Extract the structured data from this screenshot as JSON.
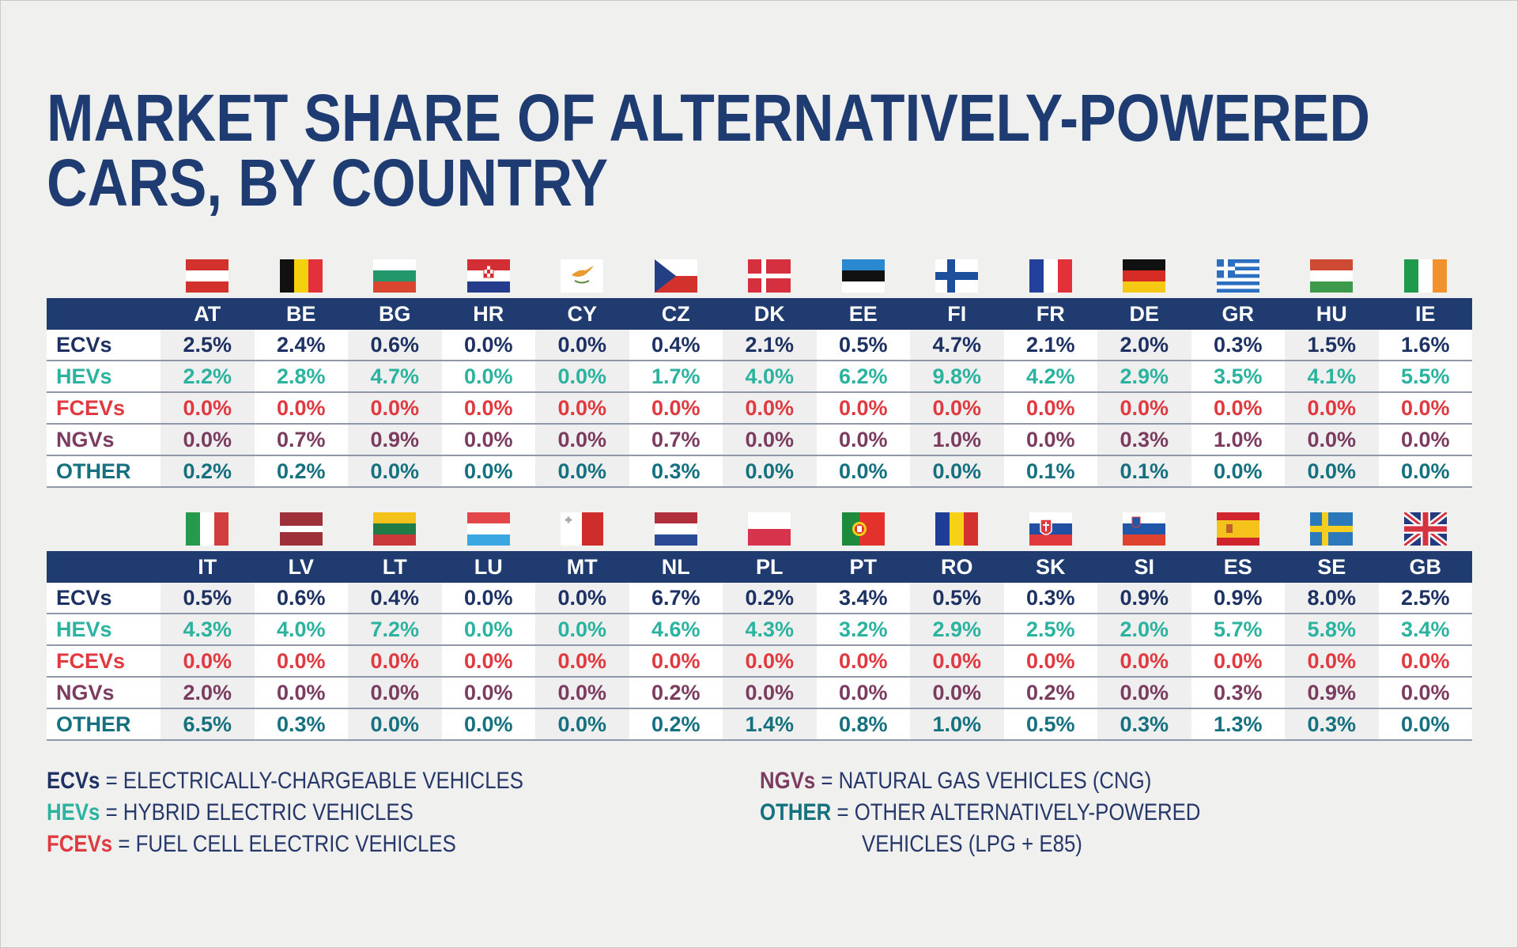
{
  "title": {
    "line1": "MARKET SHARE OF ALTERNATIVELY-POWERED",
    "line2": "CARS, BY COUNTRY"
  },
  "colors": {
    "title": "#1e3c72",
    "header_bar": "#1f3b6f",
    "ECVs": "#1d3163",
    "HEVs": "#2bb39f",
    "FCEVs": "#e03a40",
    "NGVs": "#7b3c60",
    "OTHER": "#15707f"
  },
  "row_labels": [
    "ECVs",
    "HEVs",
    "FCEVs",
    "NGVs",
    "OTHER"
  ],
  "chart_data": {
    "type": "table",
    "title": "MARKET SHARE OF ALTERNATIVELY-POWERED CARS, BY COUNTRY",
    "unit": "%",
    "rows": [
      "ECVs",
      "HEVs",
      "FCEVs",
      "NGVs",
      "OTHER"
    ],
    "tables": [
      {
        "countries": [
          "AT",
          "BE",
          "BG",
          "HR",
          "CY",
          "CZ",
          "DK",
          "EE",
          "FI",
          "FR",
          "DE",
          "GR",
          "HU",
          "IE"
        ],
        "values": {
          "ECVs": [
            "2.5%",
            "2.4%",
            "0.6%",
            "0.0%",
            "0.0%",
            "0.4%",
            "2.1%",
            "0.5%",
            "4.7%",
            "2.1%",
            "2.0%",
            "0.3%",
            "1.5%",
            "1.6%"
          ],
          "HEVs": [
            "2.2%",
            "2.8%",
            "4.7%",
            "0.0%",
            "0.0%",
            "1.7%",
            "4.0%",
            "6.2%",
            "9.8%",
            "4.2%",
            "2.9%",
            "3.5%",
            "4.1%",
            "5.5%"
          ],
          "FCEVs": [
            "0.0%",
            "0.0%",
            "0.0%",
            "0.0%",
            "0.0%",
            "0.0%",
            "0.0%",
            "0.0%",
            "0.0%",
            "0.0%",
            "0.0%",
            "0.0%",
            "0.0%",
            "0.0%"
          ],
          "NGVs": [
            "0.0%",
            "0.7%",
            "0.9%",
            "0.0%",
            "0.0%",
            "0.7%",
            "0.0%",
            "0.0%",
            "1.0%",
            "0.0%",
            "0.3%",
            "1.0%",
            "0.0%",
            "0.0%"
          ],
          "OTHER": [
            "0.2%",
            "0.2%",
            "0.0%",
            "0.0%",
            "0.0%",
            "0.3%",
            "0.0%",
            "0.0%",
            "0.0%",
            "0.1%",
            "0.1%",
            "0.0%",
            "0.0%",
            "0.0%"
          ]
        }
      },
      {
        "countries": [
          "IT",
          "LV",
          "LT",
          "LU",
          "MT",
          "NL",
          "PL",
          "PT",
          "RO",
          "SK",
          "SI",
          "ES",
          "SE",
          "GB"
        ],
        "values": {
          "ECVs": [
            "0.5%",
            "0.6%",
            "0.4%",
            "0.0%",
            "0.0%",
            "6.7%",
            "0.2%",
            "3.4%",
            "0.5%",
            "0.3%",
            "0.9%",
            "0.9%",
            "8.0%",
            "2.5%"
          ],
          "HEVs": [
            "4.3%",
            "4.0%",
            "7.2%",
            "0.0%",
            "0.0%",
            "4.6%",
            "4.3%",
            "3.2%",
            "2.9%",
            "2.5%",
            "2.0%",
            "5.7%",
            "5.8%",
            "3.4%"
          ],
          "FCEVs": [
            "0.0%",
            "0.0%",
            "0.0%",
            "0.0%",
            "0.0%",
            "0.0%",
            "0.0%",
            "0.0%",
            "0.0%",
            "0.0%",
            "0.0%",
            "0.0%",
            "0.0%",
            "0.0%"
          ],
          "NGVs": [
            "2.0%",
            "0.0%",
            "0.0%",
            "0.0%",
            "0.0%",
            "0.2%",
            "0.0%",
            "0.0%",
            "0.0%",
            "0.2%",
            "0.0%",
            "0.3%",
            "0.9%",
            "0.0%"
          ],
          "OTHER": [
            "6.5%",
            "0.3%",
            "0.0%",
            "0.0%",
            "0.0%",
            "0.2%",
            "1.4%",
            "0.8%",
            "1.0%",
            "0.5%",
            "0.3%",
            "1.3%",
            "0.3%",
            "0.0%"
          ]
        }
      }
    ]
  },
  "legend": {
    "left": [
      {
        "key": "ECVs",
        "text": " = ELECTRICALLY-CHARGEABLE VEHICLES"
      },
      {
        "key": "HEVs",
        "text": " = HYBRID ELECTRIC VEHICLES"
      },
      {
        "key": "FCEVs",
        "text": " = FUEL CELL ELECTRIC VEHICLES"
      }
    ],
    "right": [
      {
        "key": "NGVs",
        "text": " = NATURAL GAS VEHICLES (CNG)"
      },
      {
        "key": "OTHER",
        "text": " = OTHER ALTERNATIVELY-POWERED"
      }
    ],
    "right_continuation": "VEHICLES (LPG + E85)"
  },
  "flag_icons": {
    "AT": "austria-flag-icon",
    "BE": "belgium-flag-icon",
    "BG": "bulgaria-flag-icon",
    "HR": "croatia-flag-icon",
    "CY": "cyprus-flag-icon",
    "CZ": "czechia-flag-icon",
    "DK": "denmark-flag-icon",
    "EE": "estonia-flag-icon",
    "FI": "finland-flag-icon",
    "FR": "france-flag-icon",
    "DE": "germany-flag-icon",
    "GR": "greece-flag-icon",
    "HU": "hungary-flag-icon",
    "IE": "ireland-flag-icon",
    "IT": "italy-flag-icon",
    "LV": "latvia-flag-icon",
    "LT": "lithuania-flag-icon",
    "LU": "luxembourg-flag-icon",
    "MT": "malta-flag-icon",
    "NL": "netherlands-flag-icon",
    "PL": "poland-flag-icon",
    "PT": "portugal-flag-icon",
    "RO": "romania-flag-icon",
    "SK": "slovakia-flag-icon",
    "SI": "slovenia-flag-icon",
    "ES": "spain-flag-icon",
    "SE": "sweden-flag-icon",
    "GB": "united-kingdom-flag-icon"
  }
}
